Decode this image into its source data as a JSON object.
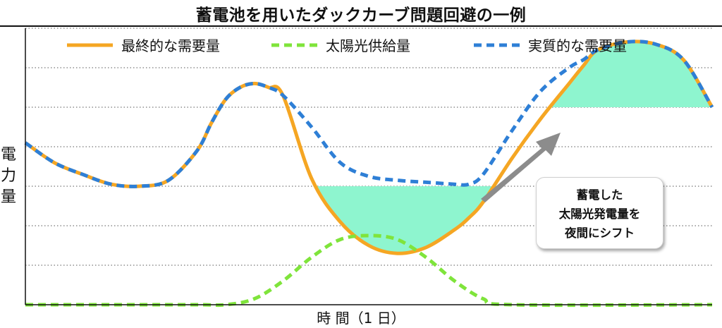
{
  "title": "蓄電池を用いたダックカーブ問題回避の一例",
  "ylabel_chars": [
    "電",
    "力",
    "量"
  ],
  "xlabel": "時 間（1 日）",
  "callout": {
    "lines": [
      "蓄電した",
      "太陽光発電量を",
      "夜間にシフト"
    ]
  },
  "colors": {
    "final_demand": "#f5a623",
    "solar_supply": "#7fe43b",
    "effective_demand": "#2e7fd6",
    "storage_fill": "#8ef5cf",
    "arrow": "#8c8c8c"
  },
  "chart_data": {
    "type": "line",
    "title": "蓄電池を用いたダックカーブ問題回避の一例",
    "xlabel": "時 間（1 日）",
    "ylabel": "電力量",
    "xlim": [
      0,
      24
    ],
    "ylim": [
      0,
      7
    ],
    "grid": true,
    "legend_position": "top",
    "series": [
      {
        "name": "最終的な需要量",
        "style": "solid",
        "color": "#f5a623",
        "x": [
          0,
          1,
          2,
          3,
          4,
          5,
          6,
          6.5,
          7,
          7.5,
          8,
          8.5,
          9,
          10,
          11,
          12,
          13,
          14,
          15,
          15.5,
          16,
          17,
          18,
          19,
          19.5,
          20,
          21,
          22,
          23,
          24
        ],
        "y": [
          4.1,
          3.6,
          3.3,
          3.05,
          3.0,
          3.15,
          3.9,
          4.6,
          5.2,
          5.5,
          5.6,
          5.5,
          5.3,
          3.2,
          2.1,
          1.5,
          1.3,
          1.45,
          1.9,
          2.2,
          2.6,
          3.7,
          4.7,
          5.6,
          6.05,
          6.45,
          6.65,
          6.6,
          6.2,
          5.0
        ]
      },
      {
        "name": "太陽光供給量",
        "style": "dashed",
        "color": "#7fe43b",
        "x": [
          0,
          3,
          6,
          7,
          8,
          9,
          10,
          11,
          12,
          13,
          14,
          15,
          16,
          17,
          24
        ],
        "y": [
          0,
          0,
          0,
          0,
          0.15,
          0.6,
          1.2,
          1.65,
          1.75,
          1.65,
          1.2,
          0.6,
          0.15,
          0,
          0
        ]
      },
      {
        "name": "実質的な需要量",
        "style": "dashed",
        "color": "#2e7fd6",
        "x": [
          0,
          1,
          2,
          3,
          4,
          5,
          6,
          6.5,
          7,
          7.5,
          8,
          8.5,
          9,
          10,
          11,
          12,
          13,
          14,
          15,
          15.5,
          16,
          17,
          18,
          19,
          19.5,
          20,
          21,
          22,
          23,
          24
        ],
        "y": [
          4.1,
          3.6,
          3.3,
          3.05,
          3.0,
          3.15,
          3.9,
          4.6,
          5.2,
          5.5,
          5.6,
          5.5,
          5.3,
          4.5,
          3.6,
          3.25,
          3.15,
          3.1,
          3.05,
          3.05,
          3.3,
          4.4,
          5.4,
          6.0,
          6.2,
          6.45,
          6.65,
          6.6,
          6.2,
          5.0
        ]
      }
    ],
    "storage_band": {
      "charge_level": 3.0,
      "discharge_level": 5.0
    }
  }
}
